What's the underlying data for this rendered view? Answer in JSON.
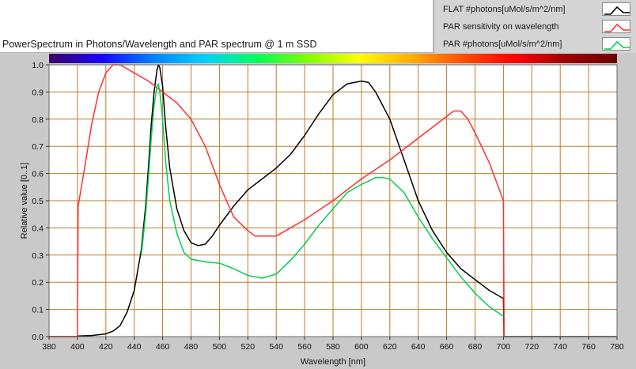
{
  "chart_data": {
    "type": "line",
    "title": "PowerSpectrum in Photons/Wavelength and PAR spectrum @ 1 m SSD",
    "xlabel": "Wavelength [nm]",
    "ylabel": "Relative value [0..1]",
    "xlim": [
      380,
      780
    ],
    "ylim": [
      0,
      1.0
    ],
    "xticks": [
      380,
      400,
      420,
      440,
      460,
      480,
      500,
      520,
      540,
      560,
      580,
      600,
      620,
      640,
      660,
      680,
      700,
      720,
      740,
      760,
      780
    ],
    "yticks": [
      0.0,
      0.1,
      0.2,
      0.3,
      0.4,
      0.5,
      0.6,
      0.7,
      0.8,
      0.9,
      1.0
    ],
    "grid": true,
    "legend_position": "top-right",
    "colors": {
      "plot_background": "#ffffff",
      "grid": "#c07a28",
      "frame_background": "#c9c9c9",
      "spectrum_bar": [
        "#3b0060",
        "#1a00ff",
        "#0080ff",
        "#00d0ff",
        "#00ff60",
        "#80ff00",
        "#ffff00",
        "#ffb000",
        "#ff5000",
        "#ff0000",
        "#a00000",
        "#6a0000"
      ]
    },
    "series": [
      {
        "name": "FLAT #photons[uMol/s/m^2/nm]",
        "color": "#000000",
        "points": [
          [
            380,
            0
          ],
          [
            399,
            0
          ],
          [
            400,
            0.002
          ],
          [
            410,
            0.004
          ],
          [
            420,
            0.01
          ],
          [
            425,
            0.02
          ],
          [
            430,
            0.04
          ],
          [
            435,
            0.09
          ],
          [
            440,
            0.17
          ],
          [
            445,
            0.32
          ],
          [
            448,
            0.48
          ],
          [
            450,
            0.62
          ],
          [
            452,
            0.78
          ],
          [
            454,
            0.9
          ],
          [
            456,
            0.98
          ],
          [
            457,
            1.0
          ],
          [
            458,
            0.99
          ],
          [
            460,
            0.92
          ],
          [
            462,
            0.78
          ],
          [
            465,
            0.62
          ],
          [
            470,
            0.47
          ],
          [
            475,
            0.39
          ],
          [
            480,
            0.345
          ],
          [
            485,
            0.335
          ],
          [
            490,
            0.34
          ],
          [
            495,
            0.37
          ],
          [
            500,
            0.41
          ],
          [
            510,
            0.48
          ],
          [
            520,
            0.54
          ],
          [
            530,
            0.58
          ],
          [
            540,
            0.62
          ],
          [
            550,
            0.67
          ],
          [
            560,
            0.74
          ],
          [
            570,
            0.82
          ],
          [
            580,
            0.89
          ],
          [
            590,
            0.93
          ],
          [
            600,
            0.94
          ],
          [
            605,
            0.935
          ],
          [
            610,
            0.9
          ],
          [
            620,
            0.8
          ],
          [
            630,
            0.65
          ],
          [
            640,
            0.5
          ],
          [
            650,
            0.39
          ],
          [
            660,
            0.31
          ],
          [
            670,
            0.25
          ],
          [
            680,
            0.21
          ],
          [
            690,
            0.17
          ],
          [
            700,
            0.14
          ],
          [
            700.5,
            0
          ],
          [
            780,
            0
          ]
        ]
      },
      {
        "name": "PAR sensitivity on wavelength",
        "color": "#ff3030",
        "points": [
          [
            380,
            0
          ],
          [
            400,
            0
          ],
          [
            400.5,
            0.48
          ],
          [
            405,
            0.62
          ],
          [
            410,
            0.78
          ],
          [
            415,
            0.9
          ],
          [
            420,
            0.97
          ],
          [
            425,
            1.0
          ],
          [
            430,
            1.0
          ],
          [
            440,
            0.97
          ],
          [
            450,
            0.94
          ],
          [
            460,
            0.9
          ],
          [
            470,
            0.86
          ],
          [
            480,
            0.8
          ],
          [
            490,
            0.7
          ],
          [
            500,
            0.56
          ],
          [
            510,
            0.44
          ],
          [
            520,
            0.39
          ],
          [
            525,
            0.37
          ],
          [
            540,
            0.37
          ],
          [
            560,
            0.43
          ],
          [
            580,
            0.5
          ],
          [
            600,
            0.58
          ],
          [
            620,
            0.65
          ],
          [
            640,
            0.73
          ],
          [
            650,
            0.77
          ],
          [
            660,
            0.81
          ],
          [
            665,
            0.83
          ],
          [
            670,
            0.83
          ],
          [
            675,
            0.8
          ],
          [
            680,
            0.75
          ],
          [
            690,
            0.64
          ],
          [
            700,
            0.5
          ],
          [
            700.5,
            0
          ]
        ]
      },
      {
        "name": "PAR #photons[uMol/s/m^2/nm]",
        "color": "#00d050",
        "points": [
          [
            445,
            0.3
          ],
          [
            448,
            0.45
          ],
          [
            450,
            0.58
          ],
          [
            452,
            0.73
          ],
          [
            454,
            0.85
          ],
          [
            456,
            0.92
          ],
          [
            457,
            0.93
          ],
          [
            458,
            0.9
          ],
          [
            460,
            0.8
          ],
          [
            462,
            0.65
          ],
          [
            465,
            0.5
          ],
          [
            470,
            0.38
          ],
          [
            475,
            0.31
          ],
          [
            480,
            0.285
          ],
          [
            490,
            0.275
          ],
          [
            500,
            0.27
          ],
          [
            510,
            0.25
          ],
          [
            520,
            0.225
          ],
          [
            530,
            0.215
          ],
          [
            540,
            0.23
          ],
          [
            550,
            0.28
          ],
          [
            560,
            0.34
          ],
          [
            570,
            0.41
          ],
          [
            580,
            0.47
          ],
          [
            590,
            0.53
          ],
          [
            600,
            0.56
          ],
          [
            610,
            0.585
          ],
          [
            615,
            0.585
          ],
          [
            620,
            0.58
          ],
          [
            630,
            0.53
          ],
          [
            640,
            0.44
          ],
          [
            650,
            0.36
          ],
          [
            660,
            0.29
          ],
          [
            670,
            0.22
          ],
          [
            680,
            0.16
          ],
          [
            690,
            0.11
          ],
          [
            700,
            0.075
          ]
        ]
      }
    ]
  }
}
